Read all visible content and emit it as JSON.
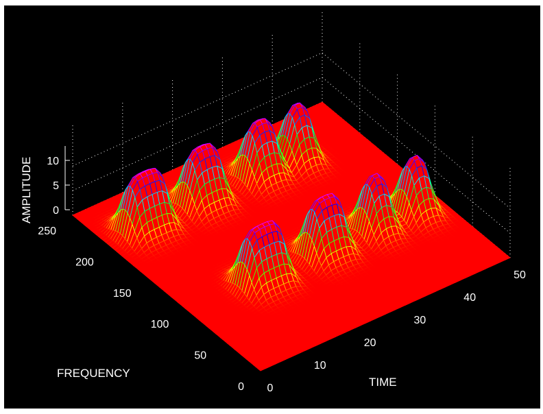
{
  "chart_data": {
    "type": "surface",
    "title": "",
    "xlabel": "TIME",
    "ylabel": "FREQUENCY",
    "zlabel": "AMPLITUDE",
    "xlim": [
      0,
      50
    ],
    "ylim": [
      0,
      250
    ],
    "zlim": [
      0,
      12
    ],
    "xticks": [
      "0",
      "10",
      "20",
      "30",
      "40",
      "50"
    ],
    "yticks": [
      "0",
      "50",
      "100",
      "150",
      "200",
      "250"
    ],
    "zticks": [
      "0",
      "5",
      "10"
    ],
    "grid": true,
    "colormap": [
      "#ff0000",
      "#ffff00",
      "#00ff00",
      "#00ffff",
      "#0000ff",
      "#ff00ff"
    ],
    "background": "#000000",
    "peaks": [
      {
        "frequency": 90,
        "time_start": 10,
        "time_end": 18,
        "amplitude": 12
      },
      {
        "frequency": 90,
        "time_start": 23,
        "time_end": 30,
        "amplitude": 12
      },
      {
        "frequency": 90,
        "time_start": 34,
        "time_end": 39,
        "amplitude": 12
      },
      {
        "frequency": 90,
        "time_start": 42,
        "time_end": 47,
        "amplitude": 12
      },
      {
        "frequency": 200,
        "time_start": 3,
        "time_end": 11,
        "amplitude": 12
      },
      {
        "frequency": 200,
        "time_start": 15,
        "time_end": 22,
        "amplitude": 12
      },
      {
        "frequency": 200,
        "time_start": 27,
        "time_end": 33,
        "amplitude": 12
      },
      {
        "frequency": 200,
        "time_start": 35,
        "time_end": 40,
        "amplitude": 12
      }
    ]
  }
}
